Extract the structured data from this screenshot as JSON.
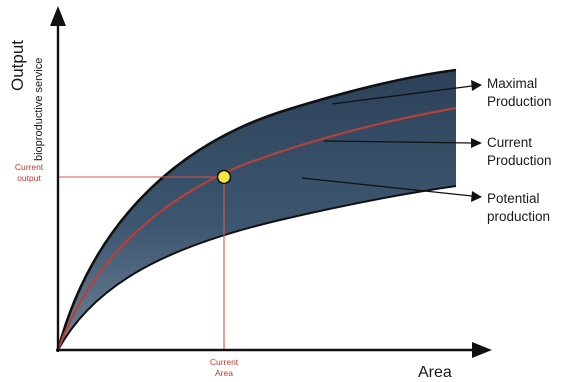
{
  "axes": {
    "y_title": "Output",
    "y_subtitle": "bioproductive service",
    "x_title": "Area"
  },
  "markers": {
    "current_output": [
      "Current",
      "output"
    ],
    "current_area": [
      "Current",
      "Area"
    ]
  },
  "callouts": [
    {
      "id": "maximal",
      "lines": [
        "Maximal",
        "Production"
      ]
    },
    {
      "id": "current",
      "lines": [
        "Current",
        "Production"
      ]
    },
    {
      "id": "potential",
      "lines": [
        "Potential",
        "production"
      ]
    }
  ],
  "colors": {
    "band_fill": "#3d5670",
    "upper_curve": "#111111",
    "current_curve": "#b5413a",
    "reference_lines": "#d9574a",
    "point": "#f5e642",
    "axes": "#111111"
  }
}
